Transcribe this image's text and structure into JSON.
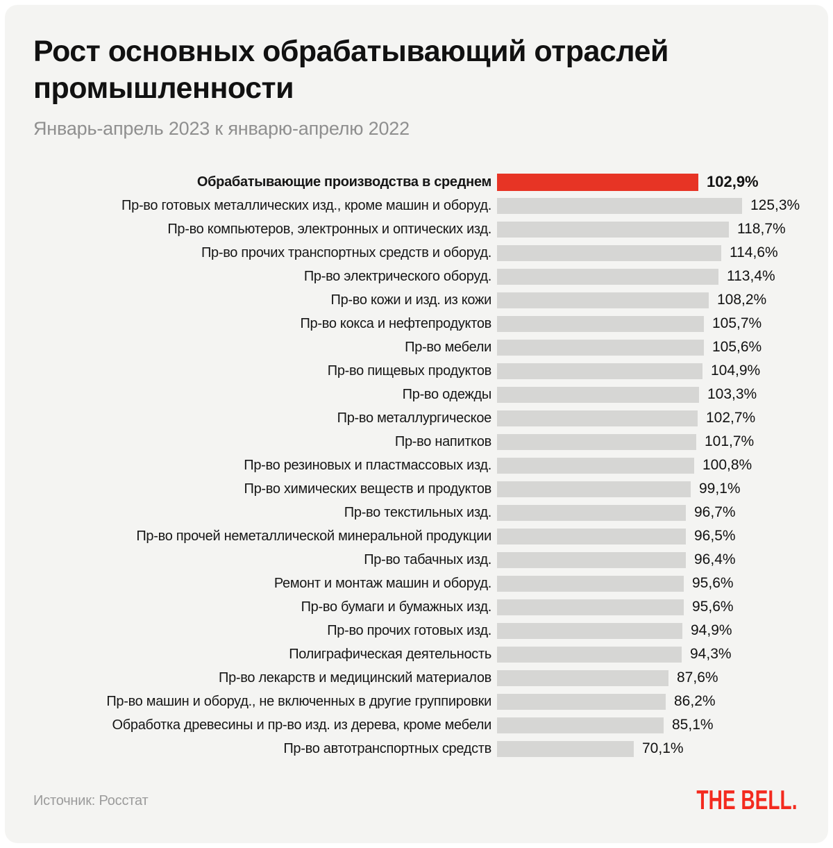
{
  "header": {
    "title": "Рост основных обрабатывающий отраслей промышленности",
    "subtitle": "Январь-апрель 2023 к январю-апрелю 2022"
  },
  "footer": {
    "source": "Источник: Росстат",
    "logo": "THE BELL."
  },
  "colors": {
    "background": "#F4F4F2",
    "bar_default": "#D6D6D4",
    "bar_highlight": "#E73425",
    "logo_red": "#F32A1E",
    "text_primary": "#111111",
    "text_muted": "#8F8F8F"
  },
  "chart_data": {
    "type": "bar",
    "orientation": "horizontal",
    "title": "Рост основных обрабатывающий отраслей промышленности",
    "subtitle": "Январь-апрель 2023 к январю-апрелю 2022",
    "source": "Росстат",
    "unit": "%",
    "value_axis_range": [
      0,
      125.3
    ],
    "grid": false,
    "legend": false,
    "highlight_index": 0,
    "rows": [
      {
        "label": "Обрабатывающие производства в среднем",
        "value": 102.9,
        "value_label": "102,9%"
      },
      {
        "label": "Пр-во готовых металлических изд., кроме машин и оборуд.",
        "value": 125.3,
        "value_label": "125,3%"
      },
      {
        "label": "Пр-во компьютеров, электронных и оптических изд.",
        "value": 118.7,
        "value_label": "118,7%"
      },
      {
        "label": "Пр-во прочих транспортных средств и оборуд.",
        "value": 114.6,
        "value_label": "114,6%"
      },
      {
        "label": "Пр-во электрического оборуд.",
        "value": 113.4,
        "value_label": "113,4%"
      },
      {
        "label": "Пр-во кожи и изд. из кожи",
        "value": 108.2,
        "value_label": "108,2%"
      },
      {
        "label": "Пр-во кокса и нефтепродуктов",
        "value": 105.7,
        "value_label": "105,7%"
      },
      {
        "label": "Пр-во мебели",
        "value": 105.6,
        "value_label": "105,6%"
      },
      {
        "label": "Пр-во пищевых продуктов",
        "value": 104.9,
        "value_label": "104,9%"
      },
      {
        "label": "Пр-во одежды",
        "value": 103.3,
        "value_label": "103,3%"
      },
      {
        "label": "Пр-во металлургическое",
        "value": 102.7,
        "value_label": "102,7%"
      },
      {
        "label": "Пр-во напитков",
        "value": 101.7,
        "value_label": "101,7%"
      },
      {
        "label": "Пр-во резиновых и пластмассовых изд.",
        "value": 100.8,
        "value_label": "100,8%"
      },
      {
        "label": "Пр-во химических веществ и продуктов",
        "value": 99.1,
        "value_label": "99,1%"
      },
      {
        "label": "Пр-во текстильных изд.",
        "value": 96.7,
        "value_label": "96,7%"
      },
      {
        "label": "Пр-во прочей неметаллической минеральной продукции",
        "value": 96.5,
        "value_label": "96,5%"
      },
      {
        "label": "Пр-во табачных изд.",
        "value": 96.4,
        "value_label": "96,4%"
      },
      {
        "label": "Ремонт и монтаж машин и оборуд.",
        "value": 95.6,
        "value_label": "95,6%"
      },
      {
        "label": "Пр-во бумаги и бумажных изд.",
        "value": 95.6,
        "value_label": "95,6%"
      },
      {
        "label": "Пр-во прочих готовых изд.",
        "value": 94.9,
        "value_label": "94,9%"
      },
      {
        "label": "Полиграфическая деятельность",
        "value": 94.3,
        "value_label": "94,3%"
      },
      {
        "label": "Пр-во лекарств и медицинский материалов",
        "value": 87.6,
        "value_label": "87,6%"
      },
      {
        "label": "Пр-во машин и оборуд., не включенных в другие группировки",
        "value": 86.2,
        "value_label": "86,2%"
      },
      {
        "label": "Обработка древесины и пр-во изд. из дерева, кроме мебели",
        "value": 85.1,
        "value_label": "85,1%"
      },
      {
        "label": "Пр-во автотранспортных средств",
        "value": 70.1,
        "value_label": "70,1%"
      }
    ]
  }
}
